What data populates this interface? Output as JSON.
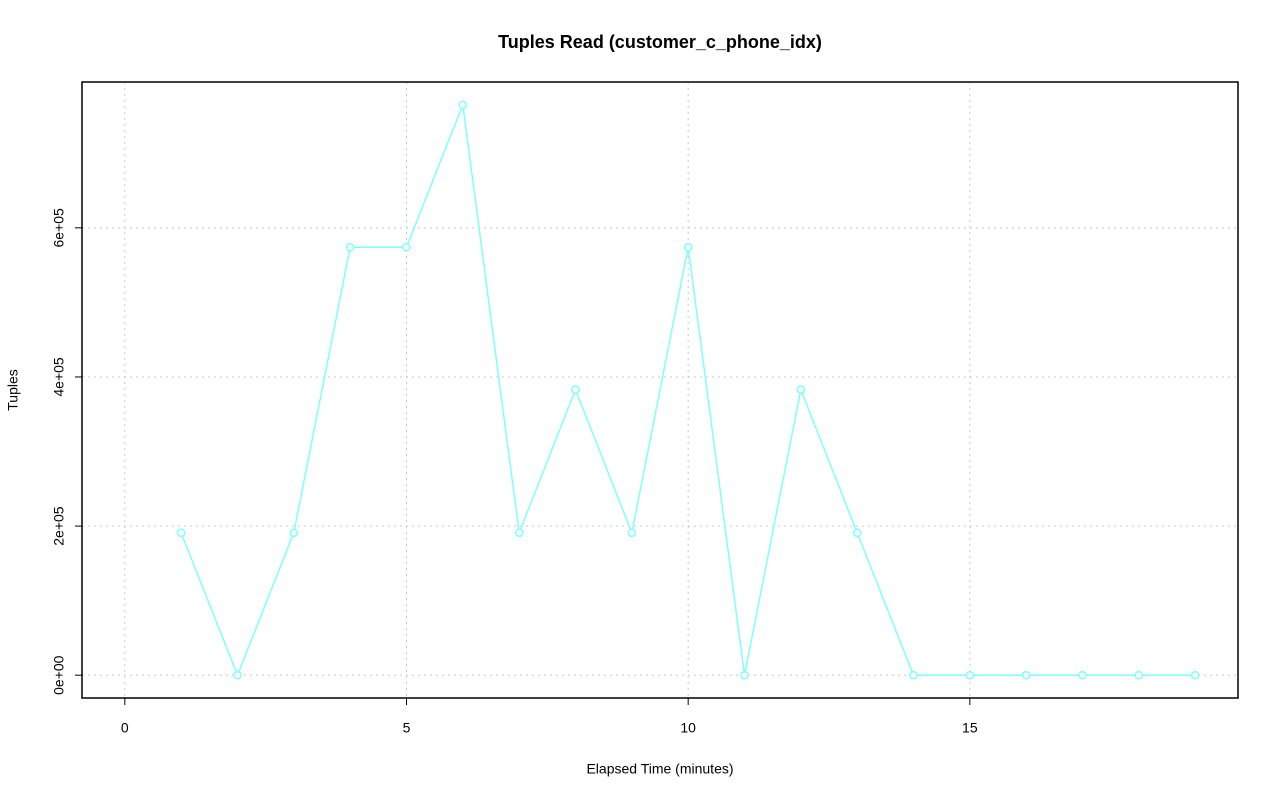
{
  "chart_data": {
    "type": "line",
    "title": "Tuples Read (customer_c_phone_idx)",
    "x_label": "Elapsed Time (minutes)",
    "y_label": "Tuples",
    "x": [
      1,
      2,
      3,
      4,
      5,
      6,
      7,
      8,
      9,
      10,
      11,
      12,
      13,
      14,
      15,
      16,
      17,
      18,
      19
    ],
    "values": [
      191000,
      0,
      191000,
      574000,
      574000,
      765000,
      191000,
      383000,
      191000,
      574000,
      0,
      383000,
      191000,
      0,
      0,
      0,
      0,
      0,
      0
    ],
    "color": "#7fffff",
    "xlim": [
      -0.76,
      19.76
    ],
    "xticks": [
      0,
      5,
      10,
      15
    ],
    "ylim": [
      -30600,
      795600
    ],
    "yticks": [
      {
        "value": 0,
        "label": "0e+00"
      },
      {
        "value": 200000,
        "label": "2e+05"
      },
      {
        "value": 400000,
        "label": "4e+05"
      },
      {
        "value": 600000,
        "label": "6e+05"
      }
    ],
    "grid": true
  }
}
